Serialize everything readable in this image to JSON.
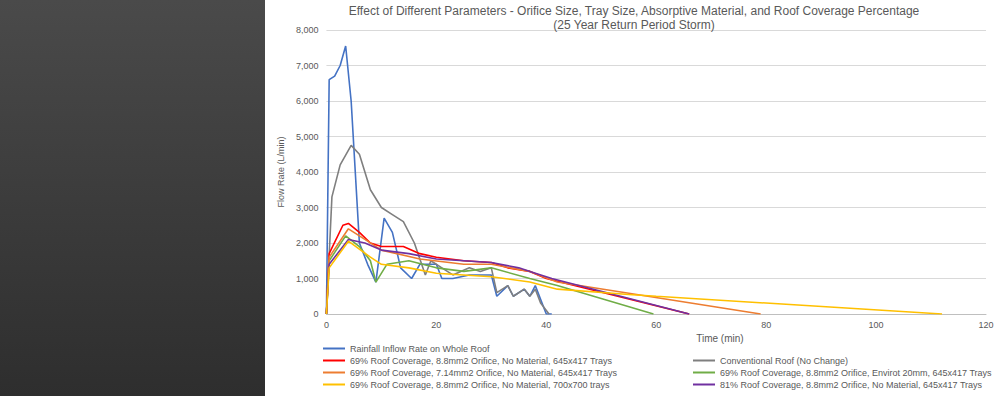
{
  "chart_data": {
    "type": "line",
    "title": "Effect of Different Parameters - Orifice Size, Tray Size, Absorptive Material, and Roof Coverage Percentage",
    "subtitle": "(25 Year Return Period Storm)",
    "x_label": "Time (min)",
    "y_label": "Flow Rate (L/min)",
    "xlim": [
      0,
      120
    ],
    "xticks": [
      0,
      20,
      40,
      60,
      80,
      100,
      120
    ],
    "ylim": [
      0,
      8000
    ],
    "yticks": [
      0,
      1000,
      2000,
      3000,
      4000,
      5000,
      6000,
      7000,
      8000
    ],
    "grid": true,
    "legend": "bottom",
    "series": [
      {
        "name": "Rainfall Inflow Rate on Whole Roof",
        "color": "#4472c4",
        "x": [
          0,
          0.5,
          1.5,
          2.5,
          3.5,
          4.5,
          6,
          7.5,
          9,
          10.5,
          12,
          13.5,
          15.5,
          17,
          20,
          21,
          23,
          26,
          30,
          31,
          33,
          34,
          36,
          37,
          38,
          40,
          41
        ],
        "values": [
          0,
          6600,
          6700,
          7000,
          7550,
          6000,
          2000,
          1400,
          900,
          2700,
          2300,
          1300,
          1000,
          1400,
          1400,
          1000,
          1000,
          1100,
          1100,
          500,
          800,
          500,
          700,
          500,
          800,
          0,
          0
        ]
      },
      {
        "name": "Conventional Roof (No Change)",
        "color": "#7f7f7f",
        "x": [
          0,
          1,
          2.5,
          4.5,
          6,
          8,
          10,
          12,
          14,
          16,
          18,
          19,
          21,
          23,
          26,
          28,
          30,
          31,
          33,
          34,
          36,
          37,
          38,
          39,
          40.5
        ],
        "values": [
          0,
          3300,
          4200,
          4750,
          4500,
          3500,
          3000,
          2800,
          2600,
          2000,
          1100,
          1500,
          1300,
          1100,
          1300,
          1200,
          1300,
          600,
          800,
          500,
          700,
          500,
          700,
          300,
          0
        ]
      },
      {
        "name": "69% Roof Coverage, 8.8mm2 Orifice, No Material, 645x417 Trays",
        "color": "#ff0000",
        "x": [
          0,
          0.5,
          3,
          4,
          6,
          8,
          10,
          14,
          17,
          20,
          25,
          30,
          33,
          37,
          40,
          66
        ],
        "values": [
          0,
          1700,
          2500,
          2550,
          2300,
          2000,
          1900,
          1900,
          1700,
          1600,
          1500,
          1450,
          1300,
          1200,
          1000,
          0
        ]
      },
      {
        "name": "69% Roof Coverage, 8.8mm2 Orifice, Envirot 20mm, 645x417 Trays",
        "color": "#70ad47",
        "x": [
          0,
          0.5,
          3.5,
          6,
          8,
          9,
          11,
          15,
          20,
          25,
          30,
          37,
          42,
          59.5
        ],
        "values": [
          0,
          1500,
          2200,
          1900,
          1500,
          900,
          1400,
          1500,
          1300,
          1200,
          1300,
          1000,
          800,
          0
        ]
      },
      {
        "name": "69% Roof Coverage, 7.14mm2 Orifice, No Material, 645x417 Trays",
        "color": "#ed7d31",
        "x": [
          0,
          0.5,
          4,
          7,
          10,
          17,
          25,
          30,
          37,
          42,
          79
        ],
        "values": [
          0,
          1600,
          2400,
          2100,
          1800,
          1550,
          1400,
          1400,
          1200,
          900,
          0
        ]
      },
      {
        "name": "81% Roof Coverage, 8.8mm2 Orifice, No Material, 645x417 Trays",
        "color": "#7030a0",
        "x": [
          0,
          0.5,
          4,
          7,
          10,
          15,
          20,
          30,
          35,
          38,
          41,
          66
        ],
        "values": [
          0,
          1400,
          2100,
          2000,
          1800,
          1700,
          1550,
          1450,
          1300,
          1150,
          1000,
          0
        ]
      },
      {
        "name": "69% Roof Coverage, 8.8mm2 Orifice, No Material, 700x700 trays",
        "color": "#ffc000",
        "x": [
          0,
          0.5,
          4,
          8,
          10,
          15,
          20,
          25,
          30,
          37,
          42,
          55,
          60,
          112
        ],
        "values": [
          0,
          1300,
          2050,
          1600,
          1400,
          1300,
          1150,
          1100,
          1050,
          900,
          700,
          550,
          500,
          0
        ]
      }
    ]
  }
}
